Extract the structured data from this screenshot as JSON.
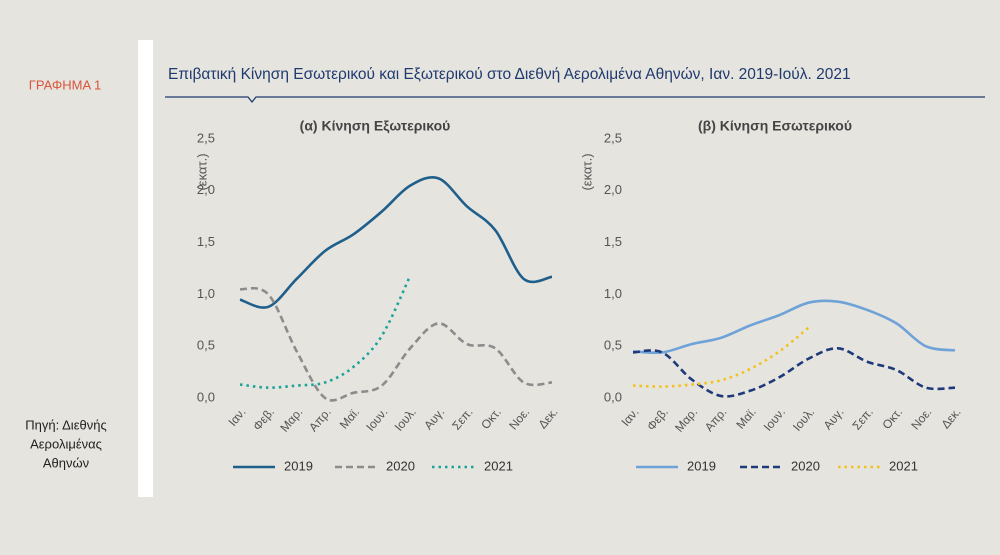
{
  "figure_label": "ΓΡΑΦΗΜΑ 1",
  "title": "Επιβατική Κίνηση Εσωτερικού και Εξωτερικού στο Διεθνή Αερολιμένα Αθηνών, Ιαν. 2019-Ιούλ. 2021",
  "source": [
    "Πηγή: Διεθνής",
    "Αερολιμένας",
    "Αθηνών"
  ],
  "chart_data": [
    {
      "type": "line",
      "title": "(α) Κίνηση  Εξωτερικού",
      "y_label": "(εκατ.)",
      "categories": [
        "Ιαν.",
        "Φεβ.",
        "Μαρ.",
        "Απρ.",
        "Μαϊ.",
        "Ιουν.",
        "Ιουλ.",
        "Αυγ.",
        "Σεπ.",
        "Οκτ.",
        "Νοε.",
        "Δεκ."
      ],
      "ylim": [
        0,
        2.5
      ],
      "yticks": [
        {
          "value": 0,
          "label": "0,0"
        },
        {
          "value": 0.5,
          "label": "0,5"
        },
        {
          "value": 1,
          "label": "1,0"
        },
        {
          "value": 1.5,
          "label": "1,5"
        },
        {
          "value": 2,
          "label": "2,0"
        },
        {
          "value": 2.5,
          "label": "2,5"
        }
      ],
      "series": [
        {
          "name": "2019",
          "color": "#1f5f8b",
          "dash": "solid",
          "values": [
            0.95,
            0.88,
            1.15,
            1.42,
            1.58,
            1.8,
            2.05,
            2.12,
            1.85,
            1.62,
            1.15,
            1.17
          ]
        },
        {
          "name": "2020",
          "color": "#8c8c8c",
          "dash": "dashed",
          "values": [
            1.05,
            1.0,
            0.45,
            0.0,
            0.05,
            0.12,
            0.48,
            0.72,
            0.52,
            0.48,
            0.15,
            0.15
          ]
        },
        {
          "name": "2021",
          "color": "#1aa39a",
          "dash": "dotted",
          "values": [
            0.13,
            0.1,
            0.12,
            0.15,
            0.3,
            0.6,
            1.18,
            null,
            null,
            null,
            null,
            null
          ]
        }
      ]
    },
    {
      "type": "line",
      "title": "(β) Κίνηση  Εσωτερικού",
      "y_label": "(εκατ.)",
      "categories": [
        "Ιαν.",
        "Φεβ.",
        "Μαρ.",
        "Απρ.",
        "Μαϊ.",
        "Ιουν.",
        "Ιουλ.",
        "Αυγ.",
        "Σεπ.",
        "Οκτ.",
        "Νοε.",
        "Δεκ."
      ],
      "ylim": [
        0,
        2.5
      ],
      "yticks": [
        {
          "value": 0,
          "label": "0,0"
        },
        {
          "value": 0.5,
          "label": "0,5"
        },
        {
          "value": 1,
          "label": "1,0"
        },
        {
          "value": 1.5,
          "label": "1,5"
        },
        {
          "value": 2,
          "label": "2,0"
        },
        {
          "value": 2.5,
          "label": "2,5"
        }
      ],
      "series": [
        {
          "name": "2019",
          "color": "#6fa3d8",
          "dash": "solid",
          "values": [
            0.45,
            0.44,
            0.52,
            0.58,
            0.7,
            0.8,
            0.92,
            0.93,
            0.85,
            0.72,
            0.5,
            0.46
          ]
        },
        {
          "name": "2020",
          "color": "#1f3a7a",
          "dash": "dashed",
          "values": [
            0.44,
            0.44,
            0.18,
            0.02,
            0.07,
            0.2,
            0.38,
            0.48,
            0.35,
            0.27,
            0.1,
            0.1
          ]
        },
        {
          "name": "2021",
          "color": "#f2c21b",
          "dash": "dotted",
          "values": [
            0.12,
            0.11,
            0.13,
            0.17,
            0.28,
            0.45,
            0.68,
            null,
            null,
            null,
            null,
            null
          ]
        }
      ]
    }
  ]
}
